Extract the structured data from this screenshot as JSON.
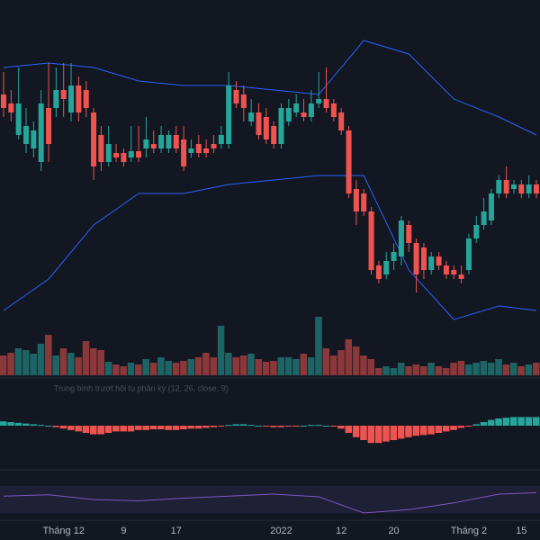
{
  "chart_data": {
    "type": "candlestick",
    "categories": [
      null,
      null,
      null,
      null,
      null,
      null,
      null,
      null,
      "Tháng 12",
      null,
      null,
      null,
      null,
      null,
      null,
      null,
      "9",
      null,
      null,
      null,
      null,
      null,
      null,
      "17",
      null,
      null,
      null,
      null,
      null,
      null,
      null,
      null,
      null,
      null,
      null,
      null,
      null,
      "2022",
      null,
      null,
      null,
      null,
      null,
      null,
      null,
      "12",
      null,
      null,
      null,
      null,
      null,
      null,
      "20",
      null,
      null,
      null,
      null,
      null,
      null,
      null,
      null,
      null,
      "Tháng 2",
      null,
      null,
      null,
      null,
      null,
      null,
      "15",
      null,
      null
    ],
    "open": [
      265,
      255,
      220,
      210,
      205,
      190,
      250,
      250,
      270,
      245,
      275,
      270,
      245,
      220,
      190,
      200,
      200,
      195,
      202,
      205,
      210,
      205,
      205,
      220,
      215,
      200,
      210,
      205,
      210,
      210,
      210,
      270,
      265,
      235,
      245,
      240,
      230,
      210,
      235,
      245,
      245,
      240,
      255,
      260,
      255,
      245,
      225,
      160,
      155,
      135,
      75,
      65,
      80,
      85,
      120,
      100,
      95,
      70,
      85,
      75,
      70,
      65,
      70,
      105,
      120,
      125,
      155,
      170,
      160,
      165,
      155,
      165
    ],
    "high": [
      290,
      270,
      295,
      250,
      235,
      270,
      300,
      295,
      300,
      300,
      285,
      280,
      250,
      230,
      230,
      210,
      205,
      230,
      230,
      240,
      225,
      230,
      225,
      230,
      230,
      215,
      220,
      215,
      220,
      230,
      290,
      280,
      275,
      260,
      255,
      250,
      235,
      255,
      260,
      265,
      260,
      270,
      290,
      295,
      260,
      250,
      230,
      170,
      160,
      140,
      80,
      90,
      100,
      130,
      125,
      105,
      100,
      90,
      90,
      80,
      75,
      75,
      110,
      130,
      150,
      160,
      175,
      185,
      170,
      170,
      175,
      170
    ],
    "low": [
      240,
      235,
      215,
      200,
      195,
      180,
      190,
      240,
      240,
      235,
      235,
      240,
      170,
      180,
      185,
      190,
      185,
      190,
      190,
      195,
      200,
      200,
      200,
      200,
      180,
      195,
      195,
      195,
      200,
      205,
      205,
      250,
      235,
      230,
      215,
      210,
      205,
      205,
      230,
      240,
      235,
      235,
      250,
      245,
      235,
      220,
      150,
      120,
      130,
      65,
      55,
      60,
      70,
      75,
      90,
      45,
      60,
      65,
      70,
      60,
      60,
      55,
      65,
      100,
      115,
      120,
      150,
      150,
      155,
      150,
      150,
      150
    ],
    "close": [
      250,
      245,
      255,
      230,
      225,
      255,
      210,
      270,
      260,
      275,
      245,
      250,
      185,
      190,
      210,
      195,
      190,
      202,
      195,
      215,
      205,
      220,
      220,
      205,
      185,
      205,
      200,
      200,
      205,
      220,
      275,
      255,
      250,
      245,
      220,
      215,
      210,
      250,
      250,
      255,
      240,
      255,
      260,
      250,
      240,
      225,
      155,
      135,
      135,
      70,
      60,
      80,
      90,
      125,
      100,
      65,
      70,
      85,
      75,
      65,
      65,
      60,
      105,
      120,
      135,
      155,
      170,
      155,
      165,
      155,
      165,
      155
    ],
    "ylim": [
      0,
      370
    ],
    "up_color": "#26a69a",
    "down_color": "#ef5350",
    "bands": {
      "x": [
        0,
        6,
        12,
        18,
        24,
        30,
        36,
        42,
        48,
        54,
        60,
        66,
        71
      ],
      "series": [
        {
          "color": "#2962ff",
          "values": [
            295,
            300,
            295,
            280,
            275,
            275,
            270,
            265,
            325,
            310,
            260,
            240,
            220
          ]
        },
        {
          "color": "#2962ff",
          "values": [
            25,
            60,
            120,
            155,
            155,
            165,
            170,
            175,
            175,
            70,
            15,
            30,
            25
          ]
        }
      ]
    },
    "volume": {
      "values": [
        22,
        25,
        30,
        28,
        24,
        35,
        45,
        22,
        30,
        25,
        20,
        38,
        30,
        28,
        15,
        12,
        10,
        14,
        12,
        18,
        14,
        20,
        16,
        14,
        16,
        18,
        20,
        25,
        20,
        55,
        25,
        20,
        22,
        24,
        18,
        15,
        16,
        20,
        20,
        18,
        24,
        20,
        65,
        30,
        22,
        28,
        40,
        32,
        22,
        18,
        8,
        10,
        8,
        14,
        10,
        12,
        10,
        14,
        10,
        8,
        14,
        16,
        12,
        14,
        16,
        14,
        18,
        12,
        14,
        10,
        12,
        14
      ],
      "ylim": [
        0,
        100
      ]
    },
    "macd": {
      "title": "Trung bình trượt hội tụ phân kỳ (12, 26, close, 9)",
      "values": [
        6,
        5,
        4,
        3,
        2,
        1,
        0,
        -2,
        -4,
        -6,
        -8,
        -10,
        -12,
        -12,
        -10,
        -8,
        -8,
        -8,
        -6,
        -6,
        -5,
        -5,
        -6,
        -6,
        -5,
        -4,
        -4,
        -3,
        -2,
        -1,
        1,
        2,
        2,
        1,
        0,
        -1,
        -2,
        -2,
        -1,
        -1,
        0,
        1,
        1,
        0,
        -1,
        -4,
        -10,
        -16,
        -20,
        -24,
        -24,
        -22,
        -20,
        -18,
        -16,
        -14,
        -13,
        -12,
        -10,
        -8,
        -6,
        -3,
        -1,
        2,
        5,
        8,
        10,
        11,
        12,
        12,
        12,
        12
      ],
      "ylim": [
        -40,
        40
      ]
    },
    "rsi": {
      "color": "#7e57c2",
      "x": [
        0,
        6,
        12,
        18,
        24,
        30,
        36,
        42,
        48,
        54,
        60,
        66,
        71
      ],
      "values": [
        55,
        57,
        50,
        48,
        52,
        55,
        58,
        54,
        30,
        35,
        45,
        58,
        60
      ],
      "ylim": [
        0,
        100
      ]
    }
  }
}
